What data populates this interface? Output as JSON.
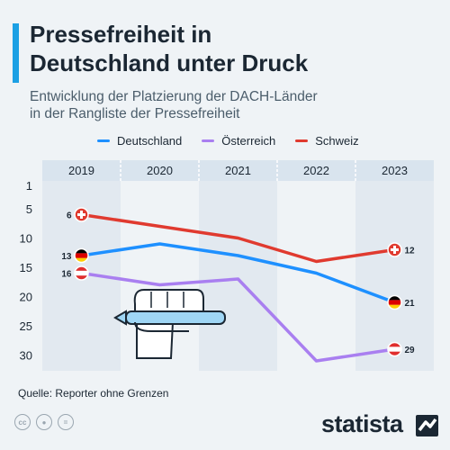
{
  "title_line1": "Pressefreiheit in",
  "title_line2": "Deutschland unter Druck",
  "subtitle_line1": "Entwicklung der Platzierung der DACH-Länder",
  "subtitle_line2": "in der Rangliste der Pressefreiheit",
  "source": "Quelle: Reporter ohne Grenzen",
  "brand": "statista",
  "icons": [
    "cc-icon",
    "person-icon",
    "equals-icon",
    "fist-pen-icon",
    "flag-germany-icon",
    "flag-switzerland-icon",
    "flag-austria-icon",
    "statista-logo-icon"
  ],
  "chart_data": {
    "type": "line",
    "title": "Pressefreiheit in Deutschland unter Druck",
    "subtitle": "Entwicklung der Platzierung der DACH-Länder in der Rangliste der Pressefreiheit",
    "categories": [
      "2019",
      "2020",
      "2021",
      "2022",
      "2023"
    ],
    "y_ticks": [
      "1",
      "5",
      "10",
      "15",
      "20",
      "25",
      "30"
    ],
    "y_range": [
      1,
      30
    ],
    "y_inverted": true,
    "legend_position": "top",
    "series": [
      {
        "name": "Deutschland",
        "color": "#1e90ff",
        "values": [
          13,
          11,
          13,
          16,
          21
        ],
        "start_label": "13",
        "end_label": "21"
      },
      {
        "name": "Österreich",
        "color": "#a97ff0",
        "values": [
          16,
          18,
          17,
          31,
          29
        ],
        "start_label": "16",
        "end_label": "29"
      },
      {
        "name": "Schweiz",
        "color": "#e03a2f",
        "values": [
          6,
          8,
          10,
          14,
          12
        ],
        "start_label": "6",
        "end_label": "12"
      }
    ]
  }
}
